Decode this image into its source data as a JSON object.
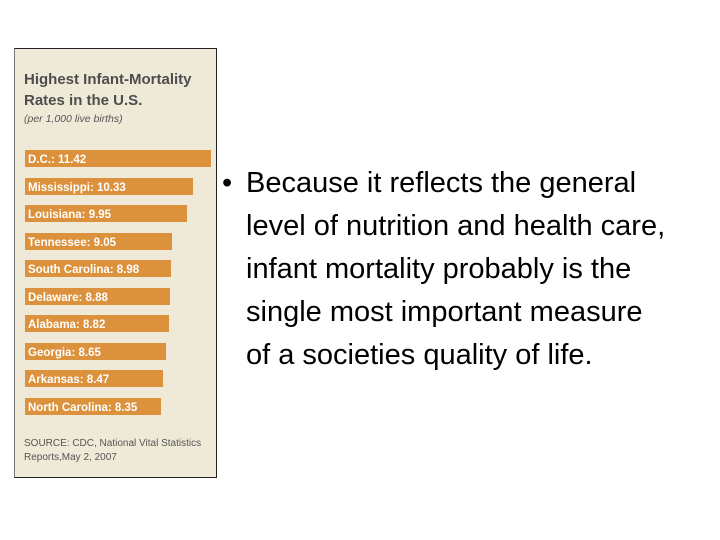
{
  "chart_data": {
    "type": "bar",
    "orientation": "horizontal",
    "title": "Highest Infant-Mortality Rates in the U.S.",
    "subtitle": "(per 1,000 live births)",
    "categories": [
      "D.C.",
      "Mississippi",
      "Louisiana",
      "Tennessee",
      "South Carolina",
      "Delaware",
      "Alabama",
      "Georgia",
      "Arkansas",
      "North Carolina"
    ],
    "values": [
      11.42,
      10.33,
      9.95,
      9.05,
      8.98,
      8.88,
      8.82,
      8.65,
      8.47,
      8.35
    ],
    "labels": [
      "D.C.: 11.42",
      "Mississippi: 10.33",
      "Louisiana: 9.95",
      "Tennessee: 9.05",
      "South Carolina: 8.98",
      "Delaware: 8.88",
      "Alabama: 8.82",
      "Georgia: 8.65",
      "Arkansas: 8.47",
      "North Carolina: 8.35"
    ],
    "source": "SOURCE: CDC, National Vital Statistics Reports,May 2, 2007",
    "bar_color": "#dc913c",
    "panel_color": "#efe9d8",
    "grid": false
  },
  "bullet": {
    "marker": "•",
    "text": "Because it reflects the general level of nutrition and health care, infant mortality probably is the single most important measure of a societies quality of life."
  }
}
